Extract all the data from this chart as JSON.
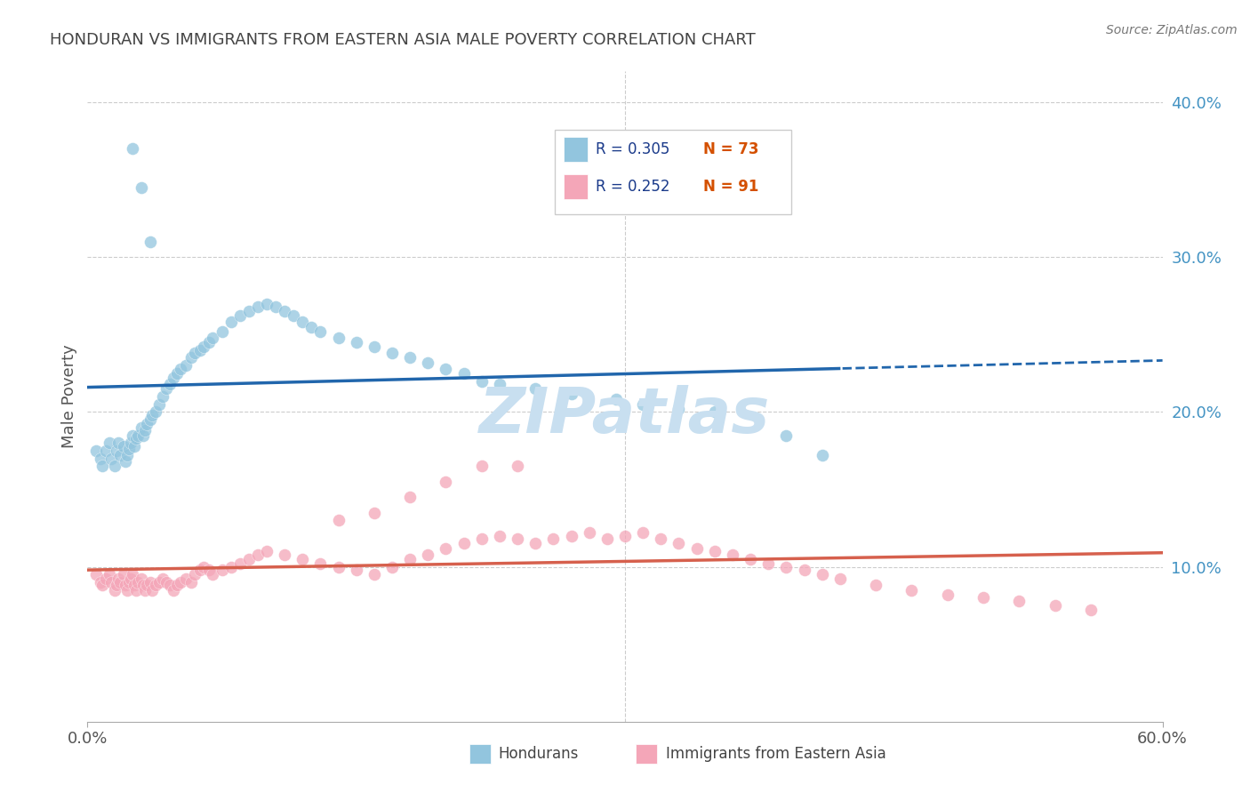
{
  "title": "HONDURAN VS IMMIGRANTS FROM EASTERN ASIA MALE POVERTY CORRELATION CHART",
  "source": "Source: ZipAtlas.com",
  "ylabel": "Male Poverty",
  "right_yticks": [
    "10.0%",
    "20.0%",
    "30.0%",
    "40.0%"
  ],
  "right_ytick_vals": [
    0.1,
    0.2,
    0.3,
    0.4
  ],
  "xlim": [
    0.0,
    0.6
  ],
  "ylim": [
    0.0,
    0.42
  ],
  "blue_color": "#92c5de",
  "pink_color": "#f4a6b8",
  "trend_blue": "#2166ac",
  "trend_pink": "#d6604d",
  "legend_text_color": "#1a3a8a",
  "legend_n_color": "#d45000",
  "right_axis_color": "#4393c3",
  "background_color": "#ffffff",
  "grid_color": "#cccccc",
  "title_color": "#444444",
  "watermark": "ZIPatlas",
  "watermark_color": "#c8dff0",
  "blue_label": "Hondurans",
  "pink_label": "Immigrants from Eastern Asia",
  "blue_x": [
    0.005,
    0.007,
    0.008,
    0.01,
    0.012,
    0.013,
    0.015,
    0.016,
    0.017,
    0.018,
    0.02,
    0.021,
    0.022,
    0.023,
    0.024,
    0.025,
    0.026,
    0.027,
    0.028,
    0.03,
    0.031,
    0.032,
    0.033,
    0.035,
    0.036,
    0.038,
    0.04,
    0.042,
    0.044,
    0.046,
    0.048,
    0.05,
    0.052,
    0.055,
    0.058,
    0.06,
    0.063,
    0.065,
    0.068,
    0.07,
    0.075,
    0.08,
    0.085,
    0.09,
    0.095,
    0.1,
    0.105,
    0.11,
    0.115,
    0.12,
    0.125,
    0.13,
    0.14,
    0.15,
    0.16,
    0.17,
    0.18,
    0.19,
    0.2,
    0.21,
    0.22,
    0.23,
    0.25,
    0.27,
    0.295,
    0.31,
    0.33,
    0.35,
    0.39,
    0.41,
    0.025,
    0.03,
    0.035
  ],
  "blue_y": [
    0.175,
    0.17,
    0.165,
    0.175,
    0.18,
    0.17,
    0.165,
    0.175,
    0.18,
    0.172,
    0.178,
    0.168,
    0.172,
    0.176,
    0.18,
    0.185,
    0.178,
    0.183,
    0.185,
    0.19,
    0.185,
    0.188,
    0.192,
    0.195,
    0.198,
    0.2,
    0.205,
    0.21,
    0.215,
    0.218,
    0.222,
    0.225,
    0.228,
    0.23,
    0.235,
    0.238,
    0.24,
    0.242,
    0.245,
    0.248,
    0.252,
    0.258,
    0.262,
    0.265,
    0.268,
    0.27,
    0.268,
    0.265,
    0.262,
    0.258,
    0.255,
    0.252,
    0.248,
    0.245,
    0.242,
    0.238,
    0.235,
    0.232,
    0.228,
    0.225,
    0.22,
    0.218,
    0.215,
    0.212,
    0.208,
    0.205,
    0.202,
    0.2,
    0.185,
    0.172,
    0.37,
    0.345,
    0.31
  ],
  "pink_x": [
    0.005,
    0.007,
    0.008,
    0.01,
    0.012,
    0.013,
    0.015,
    0.016,
    0.017,
    0.018,
    0.02,
    0.021,
    0.022,
    0.023,
    0.024,
    0.025,
    0.026,
    0.027,
    0.028,
    0.03,
    0.031,
    0.032,
    0.033,
    0.035,
    0.036,
    0.038,
    0.04,
    0.042,
    0.044,
    0.046,
    0.048,
    0.05,
    0.052,
    0.055,
    0.058,
    0.06,
    0.063,
    0.065,
    0.068,
    0.07,
    0.075,
    0.08,
    0.085,
    0.09,
    0.095,
    0.1,
    0.11,
    0.12,
    0.13,
    0.14,
    0.15,
    0.16,
    0.17,
    0.18,
    0.19,
    0.2,
    0.21,
    0.22,
    0.23,
    0.24,
    0.25,
    0.26,
    0.27,
    0.28,
    0.29,
    0.3,
    0.31,
    0.32,
    0.33,
    0.34,
    0.35,
    0.36,
    0.37,
    0.38,
    0.39,
    0.4,
    0.41,
    0.42,
    0.44,
    0.46,
    0.48,
    0.5,
    0.52,
    0.54,
    0.56,
    0.2,
    0.22,
    0.24,
    0.18,
    0.16,
    0.14
  ],
  "pink_y": [
    0.095,
    0.09,
    0.088,
    0.092,
    0.095,
    0.09,
    0.085,
    0.088,
    0.092,
    0.09,
    0.095,
    0.088,
    0.085,
    0.09,
    0.092,
    0.095,
    0.088,
    0.085,
    0.09,
    0.092,
    0.088,
    0.085,
    0.088,
    0.09,
    0.085,
    0.088,
    0.09,
    0.092,
    0.09,
    0.088,
    0.085,
    0.088,
    0.09,
    0.092,
    0.09,
    0.095,
    0.098,
    0.1,
    0.098,
    0.095,
    0.098,
    0.1,
    0.102,
    0.105,
    0.108,
    0.11,
    0.108,
    0.105,
    0.102,
    0.1,
    0.098,
    0.095,
    0.1,
    0.105,
    0.108,
    0.112,
    0.115,
    0.118,
    0.12,
    0.118,
    0.115,
    0.118,
    0.12,
    0.122,
    0.118,
    0.12,
    0.122,
    0.118,
    0.115,
    0.112,
    0.11,
    0.108,
    0.105,
    0.102,
    0.1,
    0.098,
    0.095,
    0.092,
    0.088,
    0.085,
    0.082,
    0.08,
    0.078,
    0.075,
    0.072,
    0.155,
    0.165,
    0.165,
    0.145,
    0.135,
    0.13
  ]
}
